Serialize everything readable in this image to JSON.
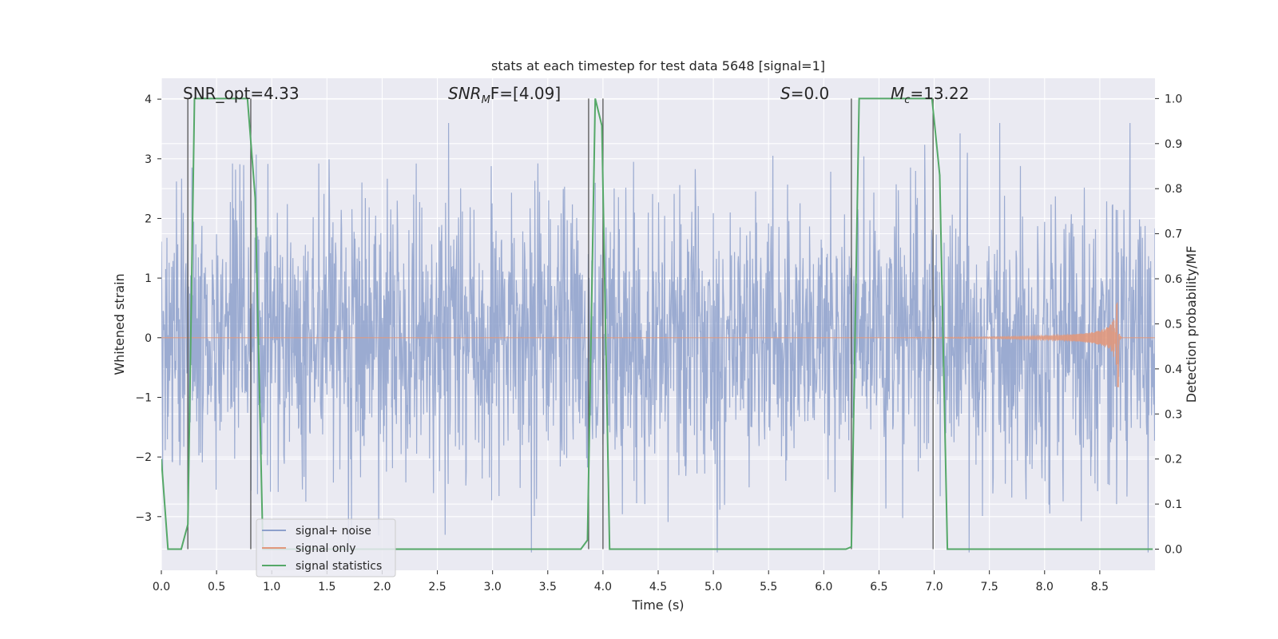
{
  "chart_data": {
    "type": "line",
    "title": "stats at each timestep for test data 5648 [signal=1]",
    "xlabel": "Time (s)",
    "ylabel_left": "Whitened strain",
    "ylabel_right": "Detection probability/MF",
    "xlim": [
      0.0,
      9.0
    ],
    "ylim_left": [
      -3.9,
      4.35
    ],
    "ylim_right": [
      -0.047,
      1.045
    ],
    "xticks": [
      0.0,
      0.5,
      1.0,
      1.5,
      2.0,
      2.5,
      3.0,
      3.5,
      4.0,
      4.5,
      5.0,
      5.5,
      6.0,
      6.5,
      7.0,
      7.5,
      8.0,
      8.5
    ],
    "xtick_labels": [
      "0.0",
      "0.5",
      "1.0",
      "1.5",
      "2.0",
      "2.5",
      "3.0",
      "3.5",
      "4.0",
      "4.5",
      "5.0",
      "5.5",
      "6.0",
      "6.5",
      "7.0",
      "7.5",
      "8.0",
      "8.5"
    ],
    "yticks_left": [
      -3,
      -2,
      -1,
      0,
      1,
      2,
      3,
      4
    ],
    "ytick_labels_left": [
      "−3",
      "−2",
      "−1",
      "0",
      "1",
      "2",
      "3",
      "4"
    ],
    "yticks_right": [
      0.0,
      0.1,
      0.2,
      0.3,
      0.4,
      0.5,
      0.6,
      0.7,
      0.8,
      0.9,
      1.0
    ],
    "ytick_labels_right": [
      "0.0",
      "0.1",
      "0.2",
      "0.3",
      "0.4",
      "0.5",
      "0.6",
      "0.7",
      "0.8",
      "0.9",
      "1.0"
    ],
    "annotations": {
      "snr_opt": "SNR_opt=4.33",
      "snr_mf_main": "SNR",
      "snr_mf_sub": "M",
      "snr_mf_tail": "F=[4.09]",
      "s_main": "S",
      "s_tail": "=0.0",
      "mc_main": "M",
      "mc_sub": "c",
      "mc_tail": "=13.22"
    },
    "series": [
      {
        "name": "signal+ noise",
        "color": "#8da0cb",
        "style": "noise",
        "sample_rate_hz": 256,
        "amplitude_std": 1.15,
        "y_range": [
          -3.6,
          3.6
        ]
      },
      {
        "name": "signal only",
        "color": "#e1987c",
        "style": "chirp",
        "merger_time": 8.67,
        "peak_amplitude": 0.62,
        "min_amplitude": -0.82
      },
      {
        "name": "signal statistics",
        "color": "#55a868",
        "style": "line",
        "axis": "right",
        "x": [
          0.0,
          0.06,
          0.18,
          0.24,
          0.3,
          0.78,
          0.85,
          0.92,
          0.98,
          3.8,
          3.86,
          3.93,
          3.99,
          4.06,
          6.2,
          6.25,
          6.32,
          6.98,
          7.05,
          7.12,
          8.98
        ],
        "y": [
          0.2,
          0.0,
          0.0,
          0.055,
          1.0,
          1.0,
          0.78,
          0.0,
          0.0,
          0.0,
          0.02,
          1.0,
          0.94,
          0.0,
          0.0,
          0.005,
          1.0,
          1.0,
          0.83,
          0.0,
          0.0
        ]
      }
    ],
    "vertical_markers": {
      "color": "#555555",
      "x": [
        0.24,
        0.81,
        3.87,
        4.0,
        6.25,
        6.99
      ],
      "y_top": 1.0,
      "y_bottom": 0.0
    },
    "legend": {
      "placement": "lower-left",
      "entries": [
        "signal+ noise",
        "signal only",
        "signal statistics"
      ]
    },
    "background": "#eaeaf2",
    "grid": true
  }
}
